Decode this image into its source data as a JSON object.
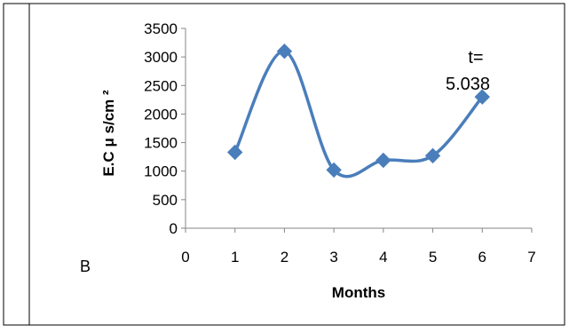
{
  "chart_data": {
    "type": "line",
    "x": [
      1,
      2,
      3,
      4,
      5,
      6
    ],
    "series": [
      {
        "values": [
          1330,
          3100,
          1020,
          1190,
          1270,
          2300
        ],
        "color": "#4a7ebb"
      }
    ],
    "xlabel": "Months",
    "ylabel": "E.C   μ s/cm ²",
    "xlim": [
      0,
      7
    ],
    "ylim": [
      0,
      3500
    ],
    "xticks": [
      "0",
      "1",
      "2",
      "3",
      "4",
      "5",
      "6",
      "7"
    ],
    "yticks": [
      "0",
      "500",
      "1000",
      "1500",
      "2000",
      "2500",
      "3000",
      "3500"
    ],
    "annotations": {
      "t_label": "t=",
      "t_value": "5.038",
      "panel_label": "B"
    },
    "marker": "diamond",
    "smoothed": true,
    "grid": false
  }
}
